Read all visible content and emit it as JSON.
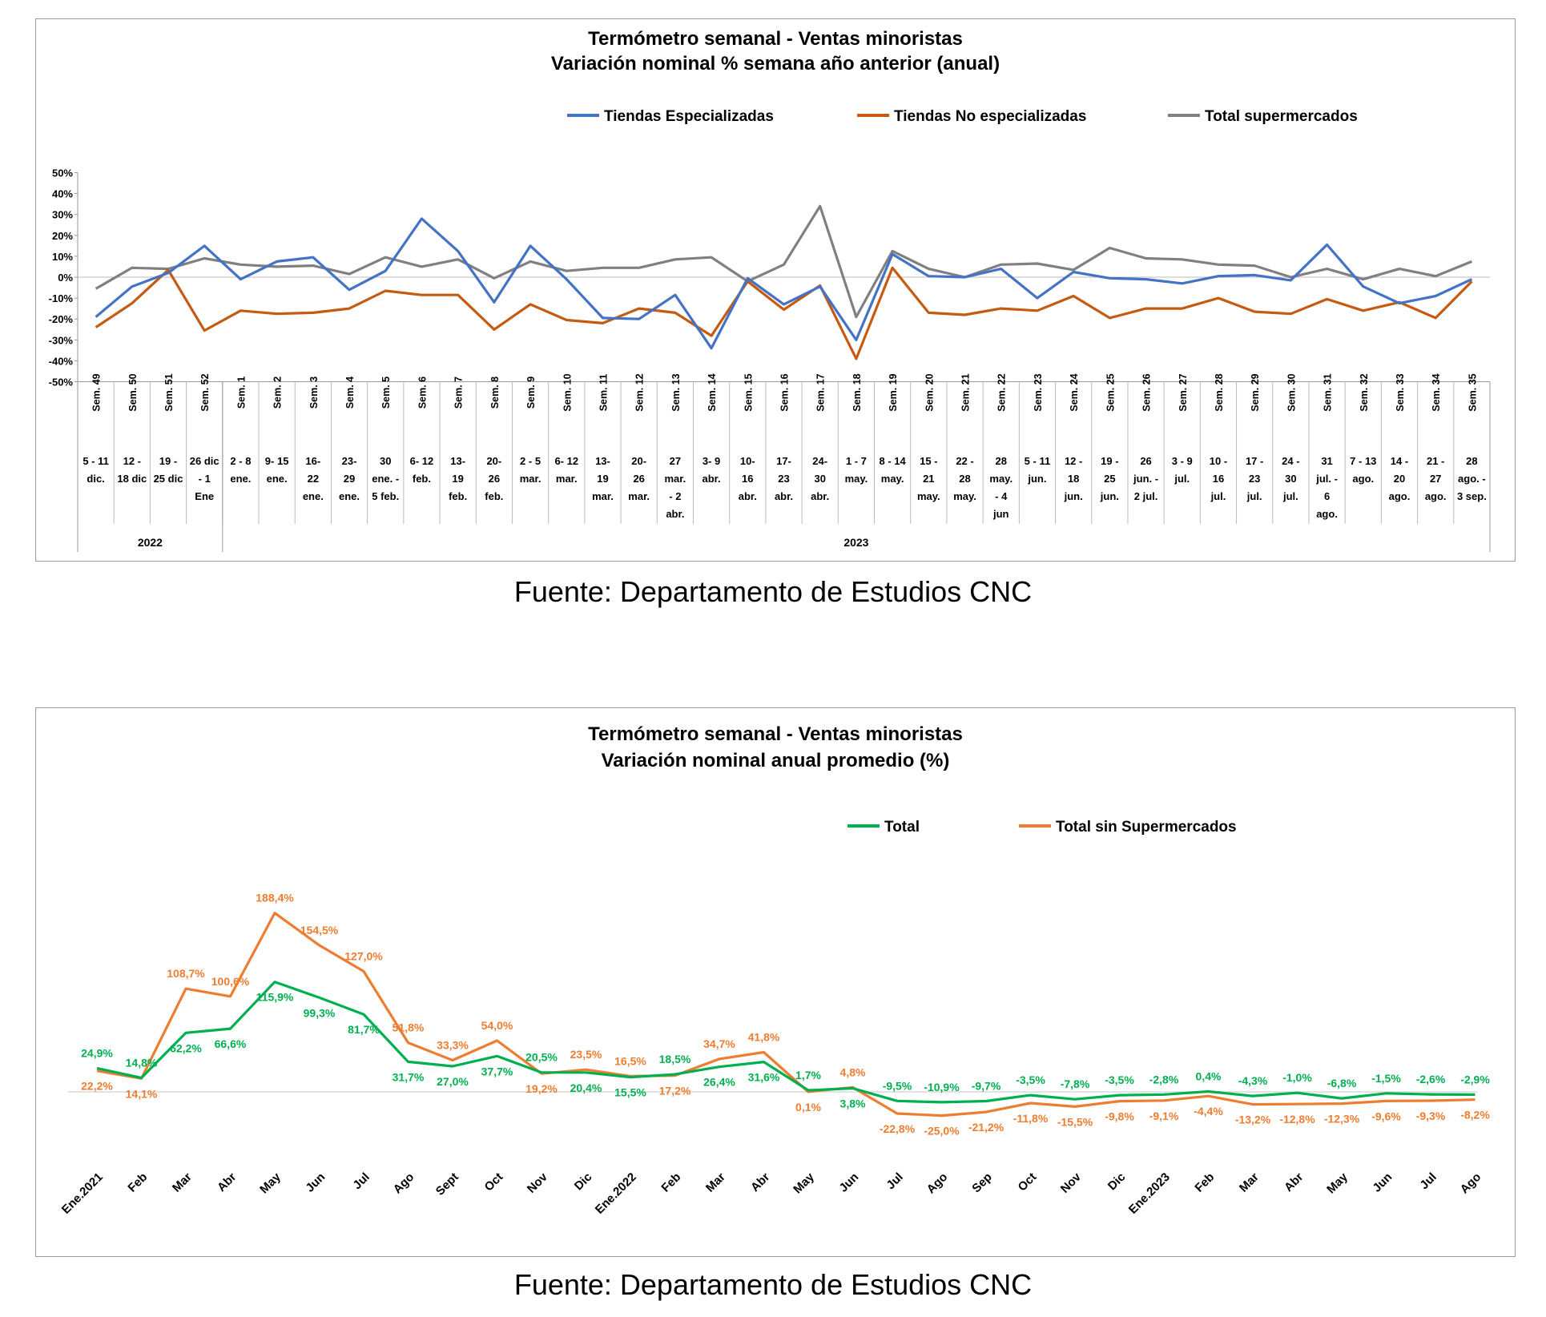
{
  "sources": [
    "Fuente: Departamento de Estudios CNC",
    "Fuente: Departamento de Estudios CNC"
  ],
  "chart_data": [
    {
      "type": "line",
      "title": "Termómetro semanal - Ventas minoristas",
      "subtitle": "Variación nominal % semana año anterior (anual)",
      "ylim": [
        -50,
        50
      ],
      "y_ticks": [
        "50%",
        "40%",
        "30%",
        "20%",
        "10%",
        "0%",
        "-10%",
        "-20%",
        "-30%",
        "-40%",
        "-50%"
      ],
      "legend_position": "top",
      "grid": false,
      "weeks": [
        "Sem. 49",
        "Sem. 50",
        "Sem. 51",
        "Sem. 52",
        "Sem. 1",
        "Sem. 2",
        "Sem. 3",
        "Sem. 4",
        "Sem. 5",
        "Sem. 6",
        "Sem. 7",
        "Sem. 8",
        "Sem. 9",
        "Sem. 10",
        "Sem. 11",
        "Sem. 12",
        "Sem. 13",
        "Sem. 14",
        "Sem. 15",
        "Sem. 16",
        "Sem. 17",
        "Sem. 18",
        "Sem. 19",
        "Sem. 20",
        "Sem. 21",
        "Sem. 22",
        "Sem. 23",
        "Sem. 24",
        "Sem. 25",
        "Sem. 26",
        "Sem. 27",
        "Sem. 28",
        "Sem. 29",
        "Sem. 30",
        "Sem. 31",
        "Sem. 32",
        "Sem. 33",
        "Sem. 34",
        "Sem. 35"
      ],
      "dates": [
        [
          "5 - 11",
          "dic."
        ],
        [
          "12 -",
          "18 dic"
        ],
        [
          "19 -",
          "25 dic"
        ],
        [
          "26 dic",
          "- 1",
          "Ene"
        ],
        [
          "2 - 8",
          "ene."
        ],
        [
          "9- 15",
          "ene."
        ],
        [
          "16-",
          "22",
          "ene."
        ],
        [
          "23-",
          "29",
          "ene."
        ],
        [
          "30",
          "ene. -",
          "5 feb."
        ],
        [
          "6- 12",
          "feb."
        ],
        [
          "13-",
          "19",
          "feb."
        ],
        [
          "20-",
          "26",
          "feb."
        ],
        [
          "2 - 5",
          "mar."
        ],
        [
          "6- 12",
          "mar."
        ],
        [
          "13-",
          "19",
          "mar."
        ],
        [
          "20-",
          "26",
          "mar."
        ],
        [
          "27",
          "mar.",
          "- 2",
          "abr."
        ],
        [
          "3- 9",
          "abr."
        ],
        [
          "10-",
          "16",
          "abr."
        ],
        [
          "17-",
          "23",
          "abr."
        ],
        [
          "24-",
          "30",
          "abr."
        ],
        [
          "1 - 7",
          "may."
        ],
        [
          "8 - 14",
          "may."
        ],
        [
          "15 -",
          "21",
          "may."
        ],
        [
          "22 -",
          "28",
          "may."
        ],
        [
          "28",
          "may.",
          "- 4",
          "jun"
        ],
        [
          "5 - 11",
          "jun."
        ],
        [
          "12 -",
          "18",
          "jun."
        ],
        [
          "19 -",
          "25",
          "jun."
        ],
        [
          "26",
          "jun. -",
          "2 jul."
        ],
        [
          "3 - 9",
          "jul."
        ],
        [
          "10 -",
          "16",
          "jul."
        ],
        [
          "17 -",
          "23",
          "jul."
        ],
        [
          "24 -",
          "30",
          "jul."
        ],
        [
          "31",
          "jul. -",
          "6",
          "ago."
        ],
        [
          "7 - 13",
          "ago."
        ],
        [
          "14 -",
          "20",
          "ago."
        ],
        [
          "21 -",
          "27",
          "ago."
        ],
        [
          "28",
          "ago. -",
          "3 sep."
        ]
      ],
      "years": [
        {
          "label": "2022",
          "start": 0,
          "end": 4
        },
        {
          "label": "2023",
          "start": 4,
          "end": 39
        }
      ],
      "series": [
        {
          "name": "Tiendas Especializadas",
          "color": "#4472C4",
          "values": [
            -19,
            -4.5,
            2,
            15,
            -1,
            7.5,
            9.5,
            -6,
            3,
            28,
            12.5,
            -12,
            15,
            -1,
            -19.5,
            -20,
            -8.5,
            -34,
            -0.5,
            -13,
            -4.5,
            -30,
            11,
            0.5,
            0,
            4,
            -10,
            2.5,
            -0.5,
            -1,
            -3,
            0.5,
            1,
            -1.5,
            15.5,
            -4.5,
            -12.5,
            -9,
            -1
          ]
        },
        {
          "name": "Tiendas No especializadas",
          "color": "#C55A11",
          "values": [
            -24,
            -12.5,
            3.5,
            -25.5,
            -16,
            -17.5,
            -17,
            -15,
            -6.5,
            -8.5,
            -8.5,
            -25,
            -13,
            -20.5,
            -22,
            -15,
            -17,
            -28,
            -2,
            -15.5,
            -4,
            -39,
            4.5,
            -17,
            -18,
            -15,
            -16,
            -9,
            -19.5,
            -15,
            -15,
            -10,
            -16.5,
            -17.5,
            -10.5,
            -16,
            -12,
            -19.5,
            -2
          ]
        },
        {
          "name": "Total supermercados",
          "color": "#808080",
          "values": [
            -5.5,
            4.5,
            4,
            9,
            6,
            5,
            5.5,
            1.5,
            9.5,
            5,
            8.5,
            -0.5,
            7.5,
            3,
            4.5,
            4.5,
            8.5,
            9.5,
            -2,
            6,
            34,
            -19,
            12.5,
            4,
            0,
            6,
            6.5,
            3.5,
            14,
            9,
            8.5,
            6,
            5.5,
            0,
            4,
            -1,
            4,
            0.5,
            7.5
          ]
        }
      ]
    },
    {
      "type": "line",
      "title": "Termómetro semanal - Ventas minoristas",
      "subtitle": "Variación nominal anual promedio (%)",
      "legend_position": "top",
      "grid": false,
      "categories": [
        "Ene.2021",
        "Feb",
        "Mar",
        "Abr",
        "May",
        "Jun",
        "Jul",
        "Ago",
        "Sept",
        "Oct",
        "Nov",
        "Dic",
        "Ene.2022",
        "Feb",
        "Mar",
        "Abr",
        "May",
        "Jun",
        "Jul",
        "Ago",
        "Sep",
        "Oct",
        "Nov",
        "Dic",
        "Ene.2023",
        "Feb",
        "Mar",
        "Abr",
        "May",
        "Jun",
        "Jul",
        "Ago"
      ],
      "series": [
        {
          "name": "Total",
          "color": "#00B050",
          "values": [
            24.9,
            14.8,
            62.2,
            66.6,
            115.9,
            99.3,
            81.7,
            31.7,
            27.0,
            37.7,
            20.5,
            20.4,
            15.5,
            18.5,
            26.4,
            31.6,
            1.7,
            3.8,
            -9.5,
            -10.9,
            -9.7,
            -3.5,
            -7.8,
            -3.5,
            -2.8,
            0.4,
            -4.3,
            -1.0,
            -6.8,
            -1.5,
            -2.6,
            -2.9
          ],
          "labels": [
            "24,9%",
            "14,8%",
            "62,2%",
            "66,6%",
            "115,9%",
            "99,3%",
            "81,7%",
            "31,7%",
            "27,0%",
            "37,7%",
            "20,5%",
            "20,4%",
            "15,5%",
            "18,5%",
            "26,4%",
            "31,6%",
            "1,7%",
            "3,8%",
            "-9,5%",
            "-10,9%",
            "-9,7%",
            "-3,5%",
            "-7,8%",
            "-3,5%",
            "-2,8%",
            "0,4%",
            "-4,3%",
            "-1,0%",
            "-6,8%",
            "-1,5%",
            "-2,6%",
            "-2,9%"
          ]
        },
        {
          "name": "Total sin Supermercados",
          "color": "#ED7D31",
          "values": [
            22.2,
            14.1,
            108.7,
            100.6,
            188.4,
            154.5,
            127.0,
            51.8,
            33.3,
            54.0,
            19.2,
            23.5,
            16.5,
            17.2,
            34.7,
            41.8,
            0.1,
            4.8,
            -22.8,
            -25.0,
            -21.2,
            -11.8,
            -15.5,
            -9.8,
            -9.1,
            -4.4,
            -13.2,
            -12.8,
            -12.3,
            -9.6,
            -9.3,
            -8.2
          ],
          "labels": [
            "22,2%",
            "14,1%",
            "108,7%",
            "100,6%",
            "188,4%",
            "154,5%",
            "127,0%",
            "51,8%",
            "33,3%",
            "54,0%",
            "19,2%",
            "23,5%",
            "16,5%",
            "17,2%",
            "34,7%",
            "41,8%",
            "0,1%",
            "4,8%",
            "-22,8%",
            "-25,0%",
            "-21,2%",
            "-11,8%",
            "-15,5%",
            "-9,8%",
            "-9,1%",
            "-4,4%",
            "-13,2%",
            "-12,8%",
            "-12,3%",
            "-9,6%",
            "-9,3%",
            "-8,2%"
          ]
        }
      ]
    }
  ]
}
